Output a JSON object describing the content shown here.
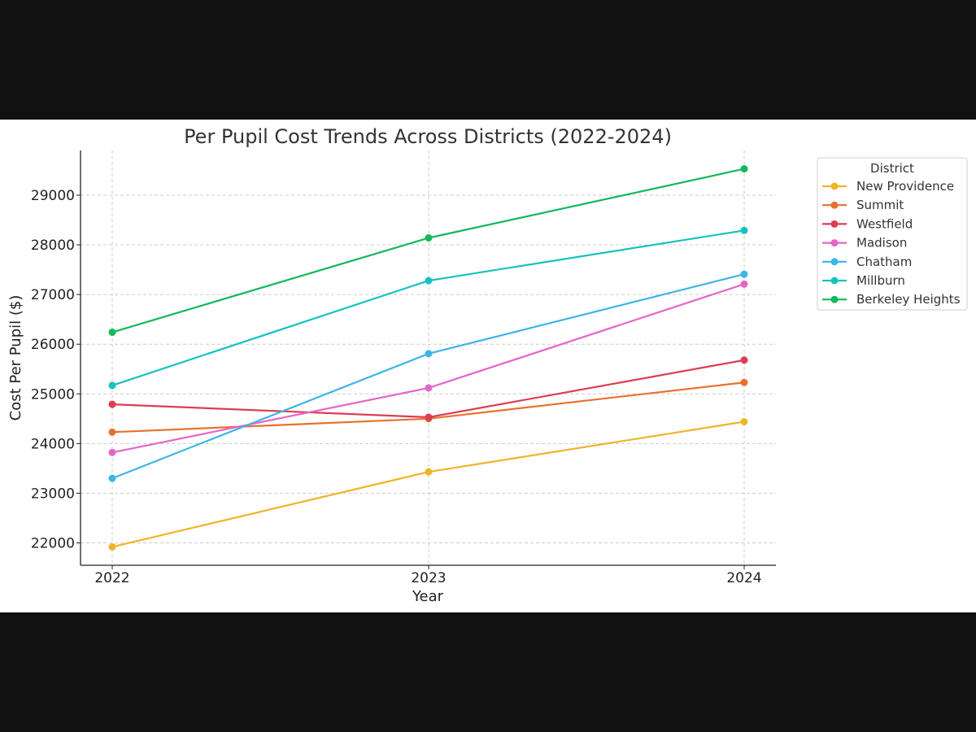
{
  "chart_data": {
    "type": "line",
    "title": "Per Pupil Cost Trends Across Districts (2022-2024)",
    "xlabel": "Year",
    "ylabel": "Cost Per Pupil ($)",
    "x": [
      2022,
      2023,
      2024
    ],
    "x_tick_labels": [
      "2022",
      "2023",
      "2024"
    ],
    "y_ticks": [
      22000,
      23000,
      24000,
      25000,
      26000,
      27000,
      28000,
      29000
    ],
    "y_tick_labels": [
      "22000",
      "23000",
      "24000",
      "25000",
      "26000",
      "27000",
      "28000",
      "29000"
    ],
    "ylim": [
      21550,
      29900
    ],
    "grid": true,
    "legend_title": "District",
    "legend_position": "outside-top-right",
    "series": [
      {
        "name": "New Providence",
        "color": "#f0b429",
        "values": [
          21920,
          23430,
          24440
        ]
      },
      {
        "name": "Summit",
        "color": "#e8712f",
        "values": [
          24230,
          24500,
          25230
        ]
      },
      {
        "name": "Westfield",
        "color": "#dc3d52",
        "values": [
          24790,
          24530,
          25680
        ]
      },
      {
        "name": "Madison",
        "color": "#e466c6",
        "values": [
          23820,
          25120,
          27210
        ]
      },
      {
        "name": "Chatham",
        "color": "#3db5e6",
        "values": [
          23300,
          25810,
          27410
        ]
      },
      {
        "name": "Millburn",
        "color": "#17c2bd",
        "values": [
          25170,
          27280,
          28290
        ]
      },
      {
        "name": "Berkeley Heights",
        "color": "#12b85a",
        "values": [
          26240,
          28140,
          29530
        ]
      }
    ]
  }
}
